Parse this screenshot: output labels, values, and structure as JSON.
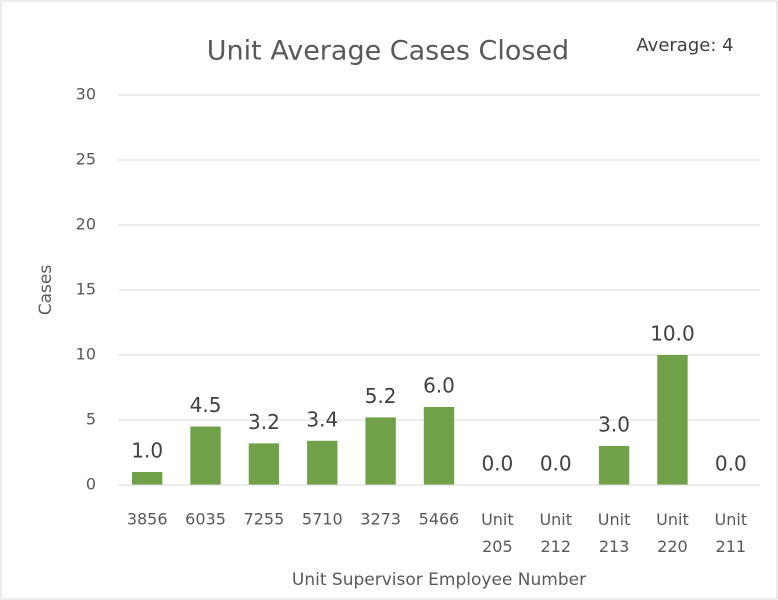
{
  "chart_data": {
    "type": "bar",
    "title": "Unit Average Cases Closed",
    "annotation": "Average: 4",
    "x_label": "Unit Supervisor Employee Number",
    "y_label": "Cases",
    "categories": [
      "3856",
      "6035",
      "7255",
      "5710",
      "3273",
      "5466",
      "Unit 205",
      "Unit 212",
      "Unit 213",
      "Unit 220",
      "Unit 211"
    ],
    "values": [
      1,
      4.5,
      3.2,
      3.4,
      5.2,
      6,
      0,
      0,
      3,
      10,
      0
    ],
    "value_labels": [
      "1.0",
      "4.5",
      "3.2",
      "3.4",
      "5.2",
      "6.0",
      "0.0",
      "0.0",
      "3.0",
      "10.0",
      "0.0"
    ],
    "color": "#70a047",
    "ylim": [
      0,
      30
    ],
    "yticks": [
      0,
      5,
      10,
      15,
      20,
      25,
      30
    ],
    "grid": true
  }
}
